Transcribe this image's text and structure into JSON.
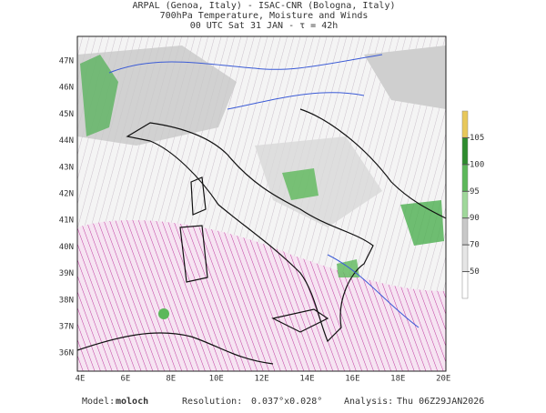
{
  "header": {
    "lines": [
      "ARPAL (Genoa, Italy)  -  ISAC-CNR (Bologna, Italy)",
      "700hPa Temperature, Moisture and Winds",
      "00 UTC Sat 31 JAN  -  τ = 42h"
    ]
  },
  "map": {
    "lat_labels": [
      "47N",
      "46N",
      "45N",
      "44N",
      "43N",
      "42N",
      "41N",
      "40N",
      "39N",
      "38N",
      "37N",
      "36N"
    ],
    "lon_labels": [
      "4E",
      "6E",
      "8E",
      "10E",
      "12E",
      "14E",
      "16E",
      "18E",
      "20E"
    ]
  },
  "colorbar": {
    "ticks": [
      50,
      70,
      90,
      95,
      100,
      105
    ],
    "colors": [
      "#ffffff",
      "#e6e6e6",
      "#c8c8c8",
      "#9fd89a",
      "#5cb85a",
      "#2e8b2e",
      "#e8c85a"
    ]
  },
  "footer": {
    "items": [
      "Model:",
      "moloch",
      "Resolution:",
      "0.037°x0.028°",
      "Analysis:",
      "Thu 06Z29JAN2026"
    ]
  }
}
